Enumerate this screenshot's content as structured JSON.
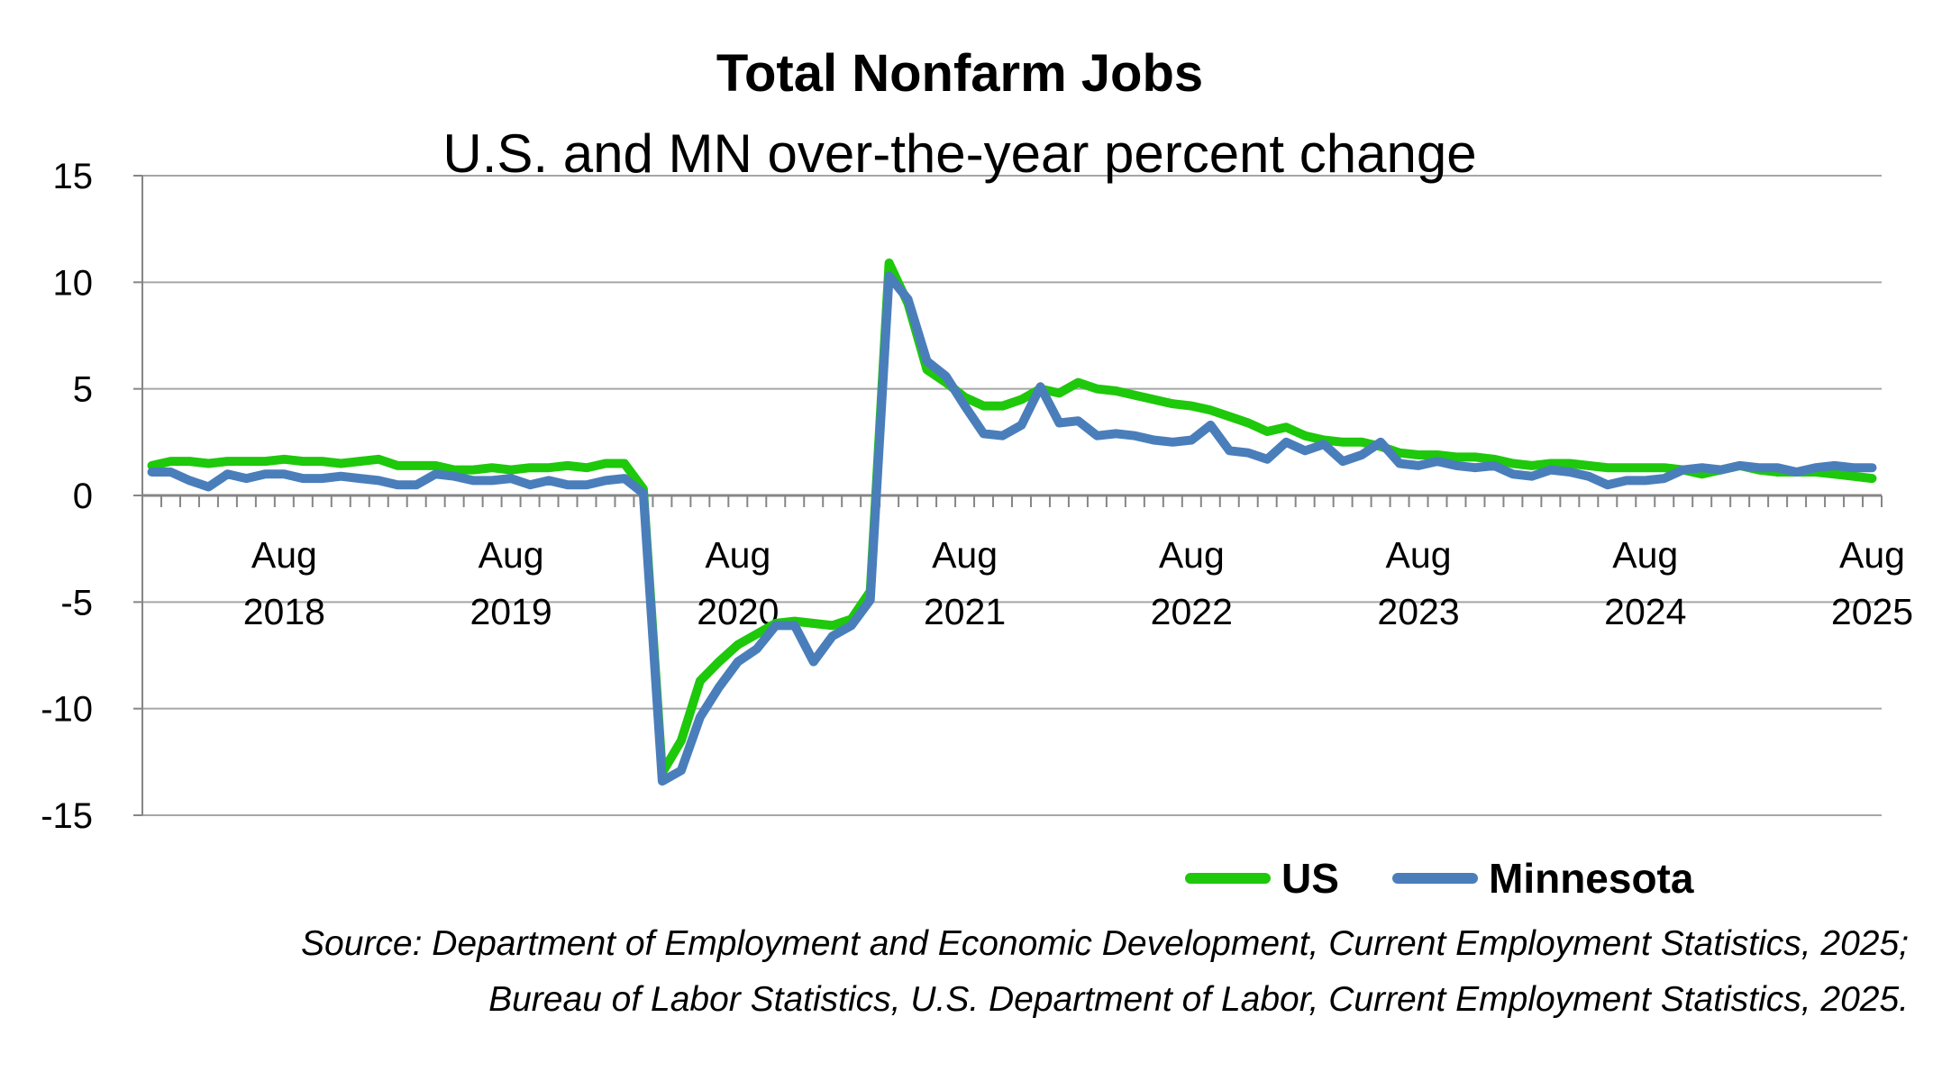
{
  "chart_data": {
    "type": "line",
    "title": "Total Nonfarm Jobs",
    "subtitle": "U.S. and MN over-the-year percent change",
    "xlabel": "",
    "ylabel": "",
    "ylim": [
      -15,
      15
    ],
    "yticks": [
      "15",
      "10",
      "5",
      "0",
      "-5",
      "-10",
      "-15"
    ],
    "ytick_values": [
      15,
      10,
      5,
      0,
      -5,
      -10,
      -15
    ],
    "x_start": "2018-01",
    "x_end": "2025-08",
    "xtick_labels": [
      {
        "month": "Aug",
        "year": "2018",
        "index": 7
      },
      {
        "month": "Aug",
        "year": "2019",
        "index": 19
      },
      {
        "month": "Aug",
        "year": "2020",
        "index": 31
      },
      {
        "month": "Aug",
        "year": "2021",
        "index": 43
      },
      {
        "month": "Aug",
        "year": "2022",
        "index": 55
      },
      {
        "month": "Aug",
        "year": "2023",
        "index": 67
      },
      {
        "month": "Aug",
        "year": "2024",
        "index": 79
      },
      {
        "month": "Aug",
        "year": "2025",
        "index": 91
      }
    ],
    "grid": true,
    "legend_position": "bottom-right",
    "series": [
      {
        "name": "US",
        "color": "#1ec80a",
        "values": [
          1.4,
          1.6,
          1.6,
          1.5,
          1.6,
          1.6,
          1.6,
          1.7,
          1.6,
          1.6,
          1.5,
          1.6,
          1.7,
          1.4,
          1.4,
          1.4,
          1.2,
          1.2,
          1.3,
          1.2,
          1.3,
          1.3,
          1.4,
          1.3,
          1.5,
          1.5,
          0.3,
          -13.0,
          -11.5,
          -8.7,
          -7.8,
          -7.0,
          -6.5,
          -6.0,
          -5.9,
          -6.0,
          -6.1,
          -5.8,
          -4.5,
          10.9,
          9.0,
          5.9,
          5.3,
          4.6,
          4.2,
          4.2,
          4.5,
          5.0,
          4.8,
          5.3,
          5.0,
          4.9,
          4.7,
          4.5,
          4.3,
          4.2,
          4.0,
          3.7,
          3.4,
          3.0,
          3.2,
          2.8,
          2.6,
          2.5,
          2.5,
          2.3,
          2.0,
          1.9,
          1.9,
          1.8,
          1.8,
          1.7,
          1.5,
          1.4,
          1.5,
          1.5,
          1.4,
          1.3,
          1.3,
          1.3,
          1.3,
          1.2,
          1.0,
          1.2,
          1.4,
          1.2,
          1.1,
          1.1,
          1.1,
          1.0,
          0.9,
          0.8
        ]
      },
      {
        "name": "Minnesota",
        "color": "#4a7ebb",
        "values": [
          1.1,
          1.1,
          0.7,
          0.4,
          1.0,
          0.8,
          1.0,
          1.0,
          0.8,
          0.8,
          0.9,
          0.8,
          0.7,
          0.5,
          0.5,
          1.0,
          0.9,
          0.7,
          0.7,
          0.8,
          0.5,
          0.7,
          0.5,
          0.5,
          0.7,
          0.8,
          0.1,
          -13.4,
          -12.9,
          -10.4,
          -9.0,
          -7.8,
          -7.2,
          -6.1,
          -6.1,
          -7.8,
          -6.6,
          -6.1,
          -4.9,
          10.3,
          9.2,
          6.3,
          5.6,
          4.2,
          2.9,
          2.8,
          3.3,
          5.1,
          3.4,
          3.5,
          2.8,
          2.9,
          2.8,
          2.6,
          2.5,
          2.6,
          3.3,
          2.1,
          2.0,
          1.7,
          2.5,
          2.1,
          2.4,
          1.6,
          1.9,
          2.5,
          1.5,
          1.4,
          1.6,
          1.4,
          1.3,
          1.4,
          1.0,
          0.9,
          1.2,
          1.1,
          0.9,
          0.5,
          0.7,
          0.7,
          0.8,
          1.2,
          1.3,
          1.2,
          1.4,
          1.3,
          1.3,
          1.1,
          1.3,
          1.4,
          1.3,
          1.3
        ]
      }
    ],
    "source_lines": [
      "Source: Department of Employment and Economic Development, Current Employment Statistics, 2025;",
      "Bureau of Labor Statistics, U.S. Department of Labor, Current Employment Statistics, 2025."
    ]
  }
}
